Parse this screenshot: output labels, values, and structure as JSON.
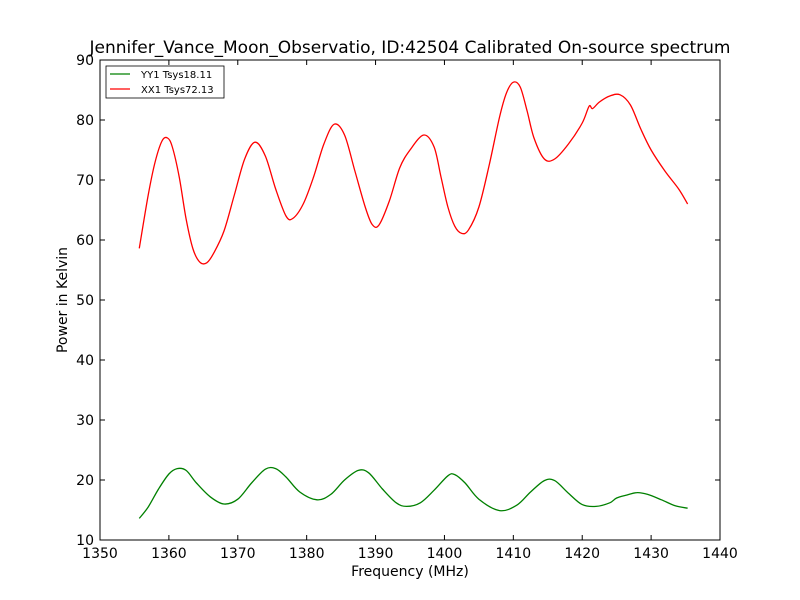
{
  "chart_data": {
    "type": "line",
    "title": "Jennifer_Vance_Moon_Observatio, ID:42504 Calibrated On-source spectrum",
    "xlabel": "Frequency (MHz)",
    "ylabel": "Power in Kelvin",
    "xlim": [
      1350,
      1440
    ],
    "ylim": [
      10,
      90
    ],
    "xticks": [
      "1350",
      "1360",
      "1370",
      "1380",
      "1390",
      "1400",
      "1410",
      "1420",
      "1430",
      "1440"
    ],
    "yticks": [
      "10",
      "20",
      "30",
      "40",
      "50",
      "60",
      "70",
      "80",
      "90"
    ],
    "grid": false,
    "legend_position": "upper-left",
    "series": [
      {
        "name": "YY1 Tsys18.11",
        "color": "#008000",
        "x": [
          1355.7,
          1357,
          1358.5,
          1360,
          1361.2,
          1362.5,
          1364,
          1366,
          1368,
          1370,
          1372,
          1374,
          1375.5,
          1377,
          1379,
          1381.5,
          1383.5,
          1385.5,
          1387.5,
          1389,
          1391,
          1393,
          1394.5,
          1396.5,
          1398.5,
          1400.5,
          1401.5,
          1403,
          1405,
          1408,
          1410.5,
          1412.5,
          1414.5,
          1416,
          1418,
          1420,
          1422,
          1424,
          1425,
          1426.5,
          1428,
          1429.5,
          1431.5,
          1433.5,
          1435.3
        ],
        "values": [
          13.6,
          15.5,
          18.5,
          21.0,
          21.9,
          21.6,
          19.5,
          17.2,
          16.0,
          16.8,
          19.5,
          21.8,
          21.9,
          20.5,
          18.0,
          16.7,
          17.6,
          20.0,
          21.6,
          21.2,
          18.5,
          16.2,
          15.6,
          16.2,
          18.3,
          20.7,
          20.9,
          19.5,
          16.8,
          14.9,
          15.8,
          18.0,
          19.9,
          19.9,
          17.8,
          15.9,
          15.6,
          16.2,
          17.0,
          17.5,
          17.9,
          17.6,
          16.7,
          15.7,
          15.3
        ]
      },
      {
        "name": "XX1 Tsys72.13",
        "color": "#ff0000",
        "x": [
          1355.7,
          1357,
          1358,
          1359,
          1359.8,
          1360.5,
          1361.5,
          1362.5,
          1363.5,
          1364.5,
          1365.5,
          1366.5,
          1368,
          1369.5,
          1371,
          1372.5,
          1374,
          1375.5,
          1377,
          1378,
          1379.5,
          1381,
          1382.5,
          1384,
          1385.5,
          1387,
          1388.5,
          1389.5,
          1390.5,
          1392,
          1393.5,
          1395,
          1397,
          1398.5,
          1399.5,
          1400.5,
          1401.5,
          1402.5,
          1403.5,
          1405,
          1406.5,
          1408,
          1409,
          1410,
          1411,
          1412,
          1413,
          1414.5,
          1416,
          1418,
          1420,
          1421,
          1421.5,
          1422.5,
          1424,
          1425.5,
          1427,
          1428.5,
          1430,
          1432,
          1434,
          1435.3
        ],
        "values": [
          58.6,
          67.5,
          73.0,
          76.5,
          77.0,
          75.5,
          70.5,
          63.5,
          58.5,
          56.3,
          56.2,
          57.8,
          61.5,
          67.5,
          73.5,
          76.3,
          74.0,
          68.5,
          64.0,
          63.6,
          66.0,
          70.5,
          76.0,
          79.3,
          77.5,
          71.5,
          65.5,
          62.6,
          62.5,
          66.5,
          72.0,
          75.0,
          77.5,
          75.5,
          70.5,
          65.5,
          62.3,
          61.1,
          61.7,
          65.5,
          72.5,
          80.5,
          84.5,
          86.3,
          85.5,
          81.5,
          77.0,
          73.5,
          73.5,
          76.0,
          79.5,
          82.3,
          81.9,
          83.0,
          84.0,
          84.2,
          82.5,
          78.5,
          75.0,
          71.5,
          68.5,
          66.0
        ]
      }
    ]
  }
}
